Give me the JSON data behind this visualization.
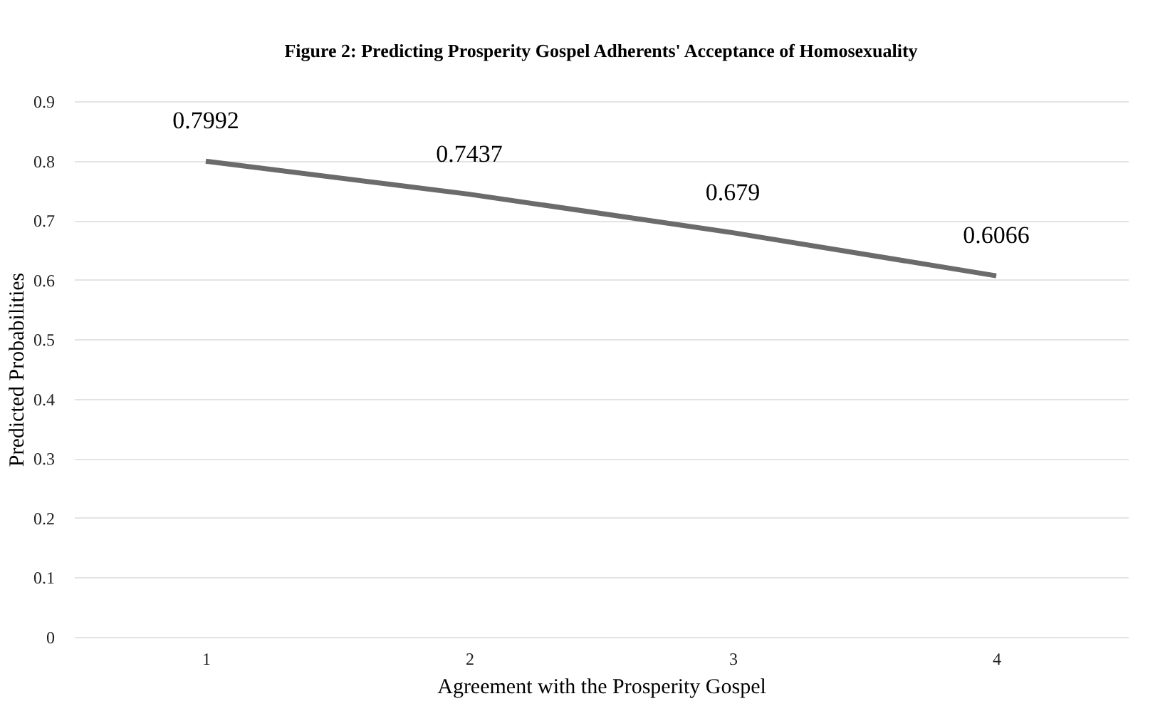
{
  "chart_data": {
    "type": "line",
    "title": "Figure 2: Predicting Prosperity Gospel Adherents' Acceptance of Homosexuality",
    "xlabel": "Agreement with the Prosperity Gospel",
    "ylabel": "Predicted Probabilities",
    "categories": [
      "1",
      "2",
      "3",
      "4"
    ],
    "series": [
      {
        "color": "#6b6b6b",
        "values": [
          0.7992,
          0.7437,
          0.679,
          0.6066
        ]
      }
    ],
    "ylim": [
      0,
      0.9
    ],
    "yticks": [
      0,
      0.1,
      0.2,
      0.3,
      0.4,
      0.5,
      0.6,
      0.7,
      0.8,
      0.9
    ],
    "grid": "y",
    "data_labels": true,
    "legend": false,
    "marker": "none",
    "line_style": "solid"
  }
}
